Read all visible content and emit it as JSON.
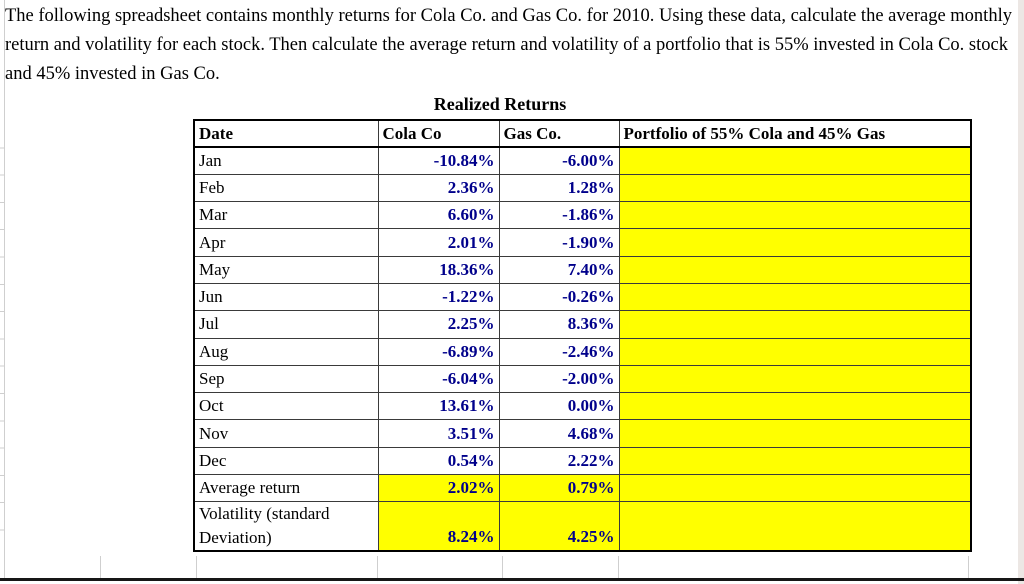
{
  "problem_text": "The following spreadsheet contains monthly returns for Cola Co. and Gas Co. for 2010. Using these data, calculate the average monthly return and volatility for each stock. Then calculate the average return and volatility of a portfolio that is 55% invested in Cola Co. stock and 45% invested in Gas Co.",
  "sheet": {
    "title": "Realized Returns",
    "columns": [
      "Date",
      "Cola Co",
      "Gas Co.",
      "Portfolio of 55% Cola and 45% Gas"
    ],
    "rows": [
      {
        "date": "Jan",
        "cola": "-10.84%",
        "gas": "-6.00%",
        "portfolio": ""
      },
      {
        "date": "Feb",
        "cola": "2.36%",
        "gas": "1.28%",
        "portfolio": ""
      },
      {
        "date": "Mar",
        "cola": "6.60%",
        "gas": "-1.86%",
        "portfolio": ""
      },
      {
        "date": "Apr",
        "cola": "2.01%",
        "gas": "-1.90%",
        "portfolio": ""
      },
      {
        "date": "May",
        "cola": "18.36%",
        "gas": "7.40%",
        "portfolio": ""
      },
      {
        "date": "Jun",
        "cola": "-1.22%",
        "gas": "-0.26%",
        "portfolio": ""
      },
      {
        "date": "Jul",
        "cola": "2.25%",
        "gas": "8.36%",
        "portfolio": ""
      },
      {
        "date": "Aug",
        "cola": "-6.89%",
        "gas": "-2.46%",
        "portfolio": ""
      },
      {
        "date": "Sep",
        "cola": "-6.04%",
        "gas": "-2.00%",
        "portfolio": ""
      },
      {
        "date": "Oct",
        "cola": "13.61%",
        "gas": "0.00%",
        "portfolio": ""
      },
      {
        "date": "Nov",
        "cola": "3.51%",
        "gas": "4.68%",
        "portfolio": ""
      },
      {
        "date": "Dec",
        "cola": "0.54%",
        "gas": "2.22%",
        "portfolio": ""
      }
    ],
    "summary_rows": [
      {
        "date": "Average return",
        "cola": "2.02%",
        "gas": "0.79%",
        "portfolio": ""
      },
      {
        "date": "Volatility (standard Deviation)",
        "cola": "8.24%",
        "gas": "4.25%",
        "portfolio": ""
      }
    ]
  },
  "colors": {
    "highlight": "#ffff00",
    "value_text": "#00008b",
    "grid_line": "#cfcfcf"
  }
}
